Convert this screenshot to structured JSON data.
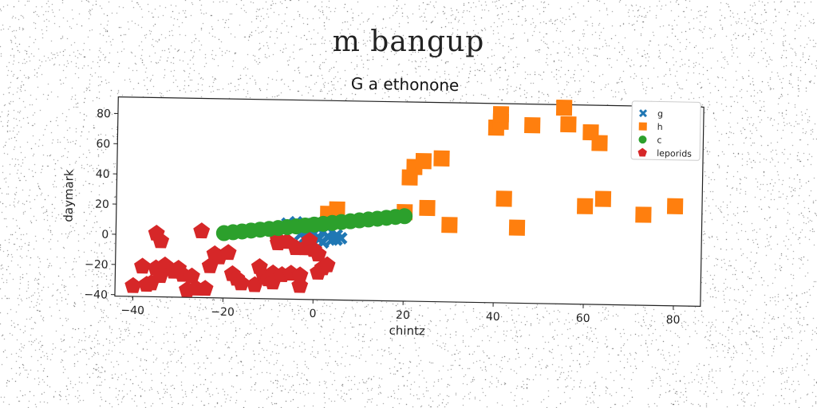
{
  "suptitle": "m bangup",
  "chart_data": {
    "type": "scatter",
    "title": "G a ethonone",
    "xlabel": "chintz",
    "ylabel": "daymark",
    "xlim": [
      -44,
      86
    ],
    "ylim": [
      -41,
      91
    ],
    "xticks": [
      -40,
      -20,
      0,
      20,
      40,
      60,
      80
    ],
    "yticks": [
      -40,
      -20,
      0,
      20,
      40,
      60,
      80
    ],
    "xtick_labels": [
      "−40",
      "−20",
      "0",
      "20",
      "40",
      "60",
      "80"
    ],
    "ytick_labels": [
      "−40",
      "−20",
      "0",
      "20",
      "40",
      "60",
      "80"
    ],
    "grid": false,
    "legend_position": "top-right",
    "series": [
      {
        "name": "g",
        "marker": "x",
        "color": "#1f77b4",
        "points": [
          [
            -7,
            5
          ],
          [
            -6,
            9
          ],
          [
            -5,
            7
          ],
          [
            -4,
            10
          ],
          [
            -3,
            6
          ],
          [
            -3,
            2
          ],
          [
            -2,
            9
          ],
          [
            -2,
            0
          ],
          [
            -1,
            5
          ],
          [
            -1,
            -2
          ],
          [
            0,
            8
          ],
          [
            0,
            3
          ],
          [
            1,
            6
          ],
          [
            1,
            -1
          ],
          [
            2,
            4
          ],
          [
            2,
            -3
          ],
          [
            3,
            1
          ],
          [
            3,
            7
          ],
          [
            4,
            -1
          ],
          [
            5,
            2
          ],
          [
            5,
            -1
          ],
          [
            6,
            0
          ]
        ]
      },
      {
        "name": "h",
        "marker": "square",
        "color": "#ff7f0e",
        "points": [
          [
            3,
            16
          ],
          [
            5,
            19
          ],
          [
            20,
            18
          ],
          [
            21,
            41
          ],
          [
            22,
            48
          ],
          [
            24,
            52
          ],
          [
            25,
            21
          ],
          [
            28,
            54
          ],
          [
            30,
            10
          ],
          [
            40,
            75
          ],
          [
            41,
            79
          ],
          [
            41,
            84
          ],
          [
            42,
            28
          ],
          [
            45,
            9
          ],
          [
            48,
            77
          ],
          [
            55,
            89
          ],
          [
            56,
            78
          ],
          [
            60,
            24
          ],
          [
            61,
            73
          ],
          [
            63,
            66
          ],
          [
            64,
            29
          ],
          [
            73,
            19
          ],
          [
            80,
            25
          ]
        ]
      },
      {
        "name": "c",
        "marker": "circle",
        "color": "#2ca02c",
        "points": [
          [
            -20,
            2
          ],
          [
            -18,
            2.7
          ],
          [
            -16,
            3.3
          ],
          [
            -14,
            4
          ],
          [
            -12,
            4.7
          ],
          [
            -10,
            5.3
          ],
          [
            -8,
            6
          ],
          [
            -6,
            6.7
          ],
          [
            -4,
            7.3
          ],
          [
            -2,
            8
          ],
          [
            0,
            8.7
          ],
          [
            2,
            9.3
          ],
          [
            4,
            10
          ],
          [
            6,
            10.7
          ],
          [
            8,
            11.3
          ],
          [
            10,
            12
          ],
          [
            12,
            12.7
          ],
          [
            14,
            13.3
          ],
          [
            16,
            14
          ],
          [
            18,
            14.7
          ],
          [
            20,
            15.3
          ]
        ]
      },
      {
        "name": "leporids",
        "marker": "pentagon",
        "color": "#d62728",
        "points": [
          [
            -40,
            -34
          ],
          [
            -38,
            -21
          ],
          [
            -37,
            -33
          ],
          [
            -36,
            -32
          ],
          [
            -35,
            1
          ],
          [
            -35,
            -22
          ],
          [
            -34,
            -27
          ],
          [
            -34,
            -4
          ],
          [
            -33,
            -20
          ],
          [
            -31,
            -24
          ],
          [
            -30,
            -22
          ],
          [
            -29,
            -26
          ],
          [
            -28,
            -36
          ],
          [
            -27,
            -27
          ],
          [
            -26,
            -35
          ],
          [
            -25,
            3
          ],
          [
            -24,
            -35
          ],
          [
            -23,
            -20
          ],
          [
            -22,
            -12
          ],
          [
            -21,
            -14
          ],
          [
            -19,
            -11
          ],
          [
            -18,
            -25
          ],
          [
            -17,
            -28
          ],
          [
            -16,
            -31
          ],
          [
            -13,
            -32
          ],
          [
            -12,
            -20
          ],
          [
            -11,
            -26
          ],
          [
            -10,
            -28
          ],
          [
            -9,
            -24
          ],
          [
            -9,
            -30
          ],
          [
            -8,
            -2
          ],
          [
            -8,
            -4
          ],
          [
            -7,
            -25
          ],
          [
            -6,
            -3
          ],
          [
            -5,
            -24
          ],
          [
            -4,
            -7
          ],
          [
            -3,
            -32
          ],
          [
            -3,
            -25
          ],
          [
            -2,
            -7
          ],
          [
            -1,
            -2
          ],
          [
            0,
            -8
          ],
          [
            1,
            -11
          ],
          [
            1,
            -23
          ],
          [
            2,
            -20
          ],
          [
            3,
            -18
          ]
        ]
      }
    ]
  }
}
